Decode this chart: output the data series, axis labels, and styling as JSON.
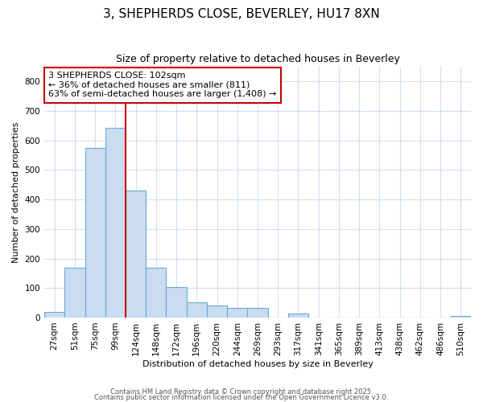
{
  "title1": "3, SHEPHERDS CLOSE, BEVERLEY, HU17 8XN",
  "title2": "Size of property relative to detached houses in Beverley",
  "xlabel": "Distribution of detached houses by size in Beverley",
  "ylabel": "Number of detached properties",
  "categories": [
    "27sqm",
    "51sqm",
    "75sqm",
    "99sqm",
    "124sqm",
    "148sqm",
    "172sqm",
    "196sqm",
    "220sqm",
    "244sqm",
    "269sqm",
    "293sqm",
    "317sqm",
    "341sqm",
    "365sqm",
    "389sqm",
    "413sqm",
    "438sqm",
    "462sqm",
    "486sqm",
    "510sqm"
  ],
  "values": [
    18,
    170,
    575,
    643,
    430,
    170,
    103,
    52,
    40,
    32,
    32,
    0,
    13,
    0,
    0,
    0,
    0,
    0,
    0,
    0,
    6
  ],
  "bar_color": "#c9dcf0",
  "bar_edge_color": "#6aaad4",
  "bar_width": 1.0,
  "vline_x": 3.5,
  "vline_color": "#cc0000",
  "annotation_text": "3 SHEPHERDS CLOSE: 102sqm\n← 36% of detached houses are smaller (811)\n63% of semi-detached houses are larger (1,408) →",
  "annotation_box_color": "#ffffff",
  "annotation_box_edge": "#cc0000",
  "ylim": [
    0,
    850
  ],
  "yticks": [
    0,
    100,
    200,
    300,
    400,
    500,
    600,
    700,
    800
  ],
  "background_color": "#ffffff",
  "grid_color": "#d0dff0",
  "footer1": "Contains HM Land Registry data © Crown copyright and database right 2025.",
  "footer2": "Contains public sector information licensed under the Open Government Licence v3.0.",
  "title1_fontsize": 11,
  "title2_fontsize": 9,
  "axis_label_fontsize": 8,
  "tick_fontsize": 7.5,
  "footer_fontsize": 6,
  "annotation_fontsize": 8
}
